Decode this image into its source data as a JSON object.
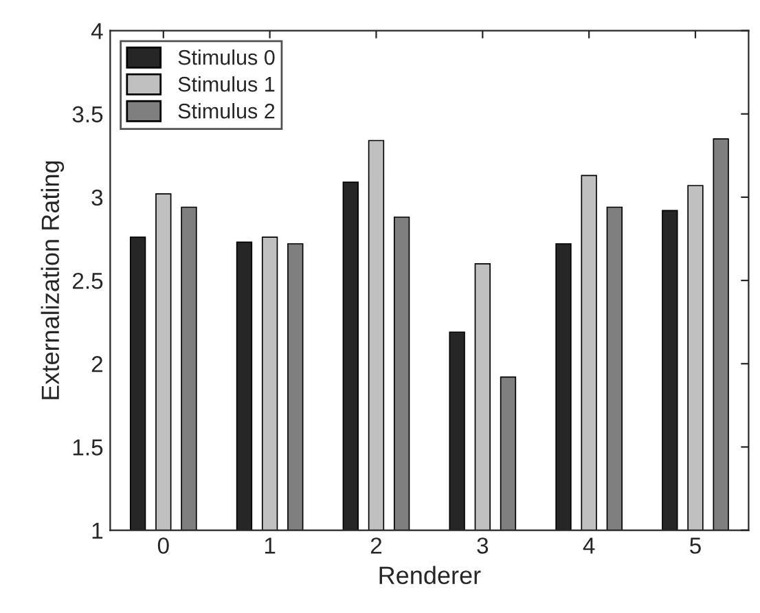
{
  "chart_data": {
    "type": "bar",
    "xlabel": "Renderer",
    "ylabel": "Externalization Rating",
    "categories": [
      "0",
      "1",
      "2",
      "3",
      "4",
      "5"
    ],
    "series": [
      {
        "name": "Stimulus 0",
        "color": "#262626",
        "values": [
          2.76,
          2.73,
          3.09,
          2.19,
          2.72,
          2.92
        ]
      },
      {
        "name": "Stimulus 1",
        "color": "#c0c0c0",
        "values": [
          3.02,
          2.76,
          3.34,
          2.6,
          3.13,
          3.07
        ]
      },
      {
        "name": "Stimulus 2",
        "color": "#7f7f7f",
        "values": [
          2.94,
          2.72,
          2.88,
          1.92,
          2.94,
          3.35
        ]
      }
    ],
    "ylim": [
      1,
      4
    ],
    "yticks": [
      1,
      1.5,
      2,
      2.5,
      3,
      3.5,
      4
    ],
    "grid": false,
    "legend": "top left"
  }
}
